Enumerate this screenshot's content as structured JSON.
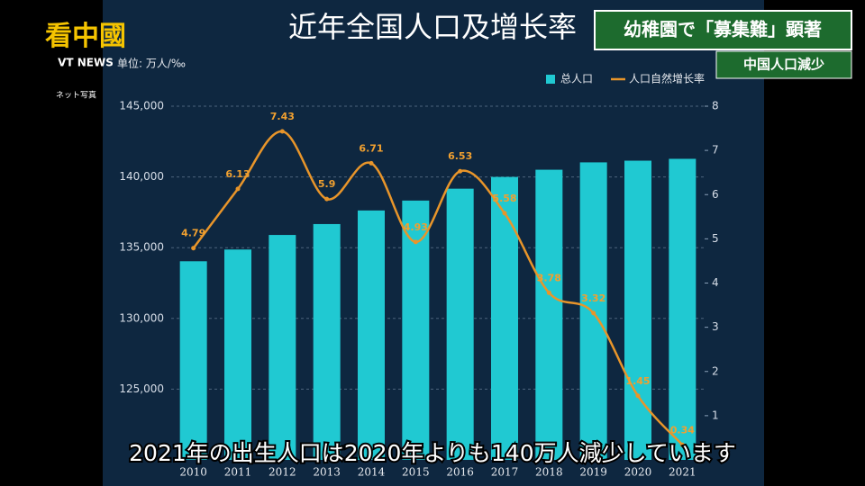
{
  "chart_data": {
    "type": "bar-line",
    "title": "近年全国人口及增长率",
    "unit": "单位: 万人/‰",
    "categories": [
      "2010",
      "2011",
      "2012",
      "2013",
      "2014",
      "2015",
      "2016",
      "2017",
      "2018",
      "2019",
      "2020",
      "2021"
    ],
    "series": [
      {
        "name": "总人口",
        "color": "#20c9d2",
        "type": "bar",
        "values": [
          134040,
          134870,
          135900,
          136670,
          137630,
          138330,
          139170,
          140000,
          140510,
          141030,
          141150,
          141280
        ]
      },
      {
        "name": "人口自然增长率",
        "color": "#e8952a",
        "type": "line",
        "axis": "y2",
        "values": [
          4.79,
          6.13,
          7.43,
          5.9,
          6.71,
          4.93,
          6.53,
          5.58,
          3.78,
          3.32,
          1.45,
          0.34
        ]
      }
    ],
    "ylim": [
      120000,
      145000
    ],
    "yticks": [
      {
        "value": 125000,
        "label": "125,000"
      },
      {
        "value": 130000,
        "label": "130,000"
      },
      {
        "value": 135000,
        "label": "135,000"
      },
      {
        "value": 140000,
        "label": "140,000"
      },
      {
        "value": 145000,
        "label": "145,000"
      }
    ],
    "y2lim": [
      0,
      8
    ],
    "y2ticks": [
      1,
      2,
      3,
      4,
      5,
      6,
      7,
      8
    ],
    "grid": true,
    "legend": "top-right"
  },
  "overlay": {
    "logo": "看中國",
    "logo_sub": "VT NEWS",
    "photo_credit": "ネット写真",
    "headline": "幼稚園で「募集難」顕著",
    "tag": "中国人口減少",
    "caption": "2021年の出生人口は2020年よりも140万人減少しています"
  }
}
